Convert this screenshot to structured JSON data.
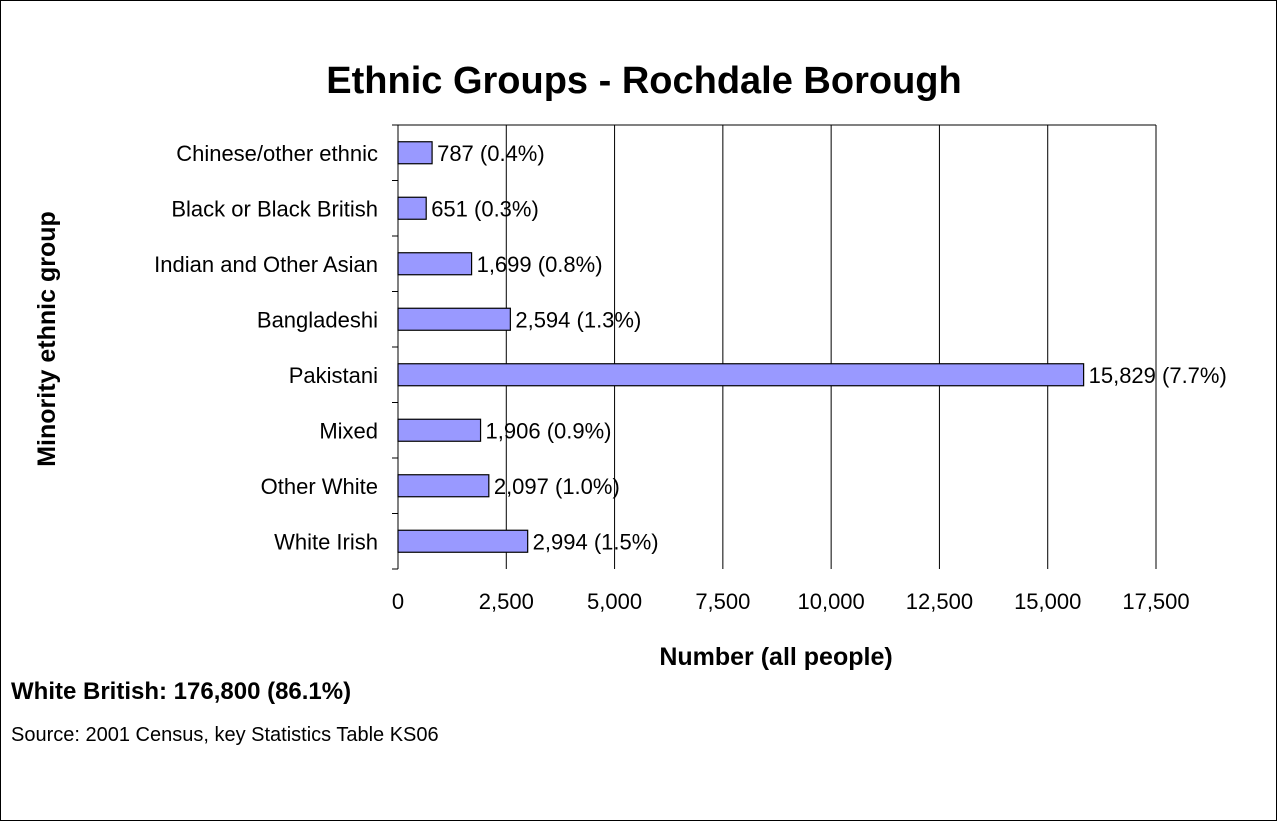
{
  "chart_data": {
    "type": "bar",
    "orientation": "horizontal",
    "title": "Ethnic Groups - Rochdale Borough",
    "xlabel": "Number (all people)",
    "ylabel": "Minority ethnic group",
    "xlim": [
      0,
      17500
    ],
    "xticks": [
      0,
      2500,
      5000,
      7500,
      10000,
      12500,
      15000,
      17500
    ],
    "xtick_labels": [
      "0",
      "2,500",
      "5,000",
      "7,500",
      "10,000",
      "12,500",
      "15,000",
      "17,500"
    ],
    "grid": true,
    "bar_color": "#9999ff",
    "categories": [
      "Chinese/other ethnic",
      "Black or Black British",
      "Indian and Other Asian",
      "Bangladeshi",
      "Pakistani",
      "Mixed",
      "Other White",
      "White Irish"
    ],
    "values": [
      787,
      651,
      1699,
      2594,
      15829,
      1906,
      2097,
      2994
    ],
    "data_labels": [
      "787 (0.4%)",
      "651 (0.3%)",
      "1,699 (0.8%)",
      "2,594 (1.3%)",
      "15,829 (7.7%)",
      "1,906 (0.9%)",
      "2,097 (1.0%)",
      "2,994 (1.5%)"
    ]
  },
  "notes": {
    "footnote": "White British: 176,800 (86.1%)",
    "source": "Source: 2001 Census, key Statistics Table KS06"
  }
}
